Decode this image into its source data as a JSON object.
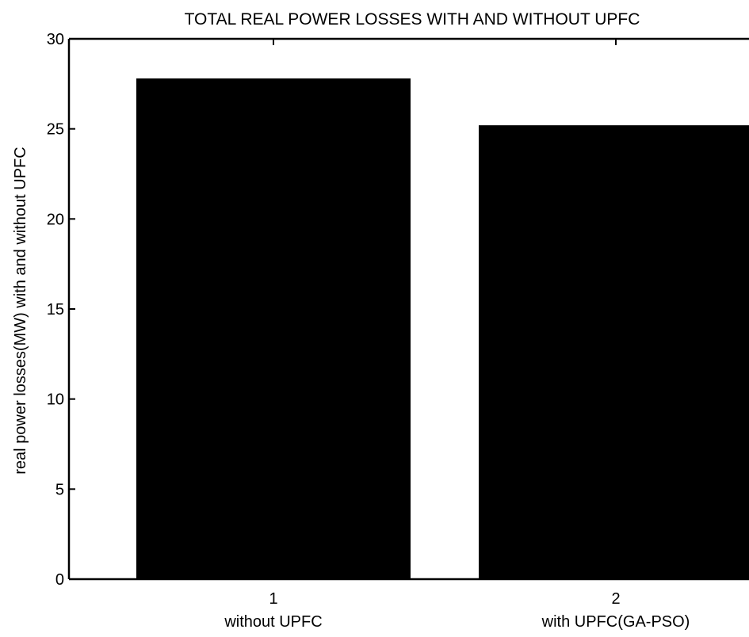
{
  "chart_data": {
    "type": "bar",
    "title": "TOTAL REAL POWER LOSSES WITH AND WITHOUT UPFC",
    "ylabel": "real power losses(MW) with and without UPFC",
    "xlabel": "",
    "x_ticks": [
      "1",
      "2"
    ],
    "categories": [
      "without UPFC",
      "with UPFC(GA-PSO)"
    ],
    "values": [
      27.8,
      25.2
    ],
    "ylim": [
      0,
      30
    ],
    "y_ticks": [
      0,
      5,
      10,
      15,
      20,
      25,
      30
    ],
    "grid": false,
    "bar_color": "#000000"
  }
}
